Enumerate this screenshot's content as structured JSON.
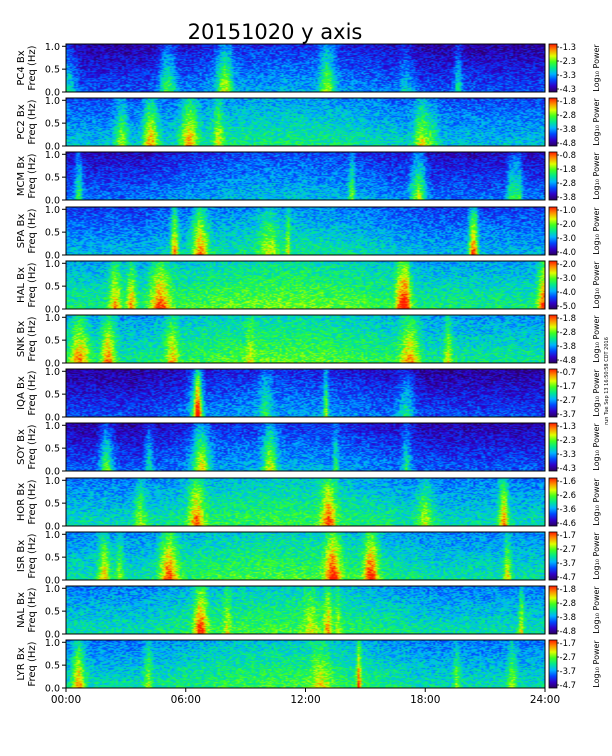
{
  "figure": {
    "title": "20151020 y axis",
    "stamp": "run Tue Sep 13 16:50:58 CDT 2016",
    "colorbar_label": "Log₁₀ Power"
  },
  "chart_data": {
    "type": "heatmap",
    "x_ticks": [
      "00:00",
      "06:00",
      "12:00",
      "18:00",
      "24:00"
    ],
    "xlim_hours": [
      0,
      24
    ],
    "y_ticks": [
      "0.0",
      "0.5",
      "1.0"
    ],
    "ylim_hz": [
      0,
      1.05
    ],
    "colormap": [
      "#2a0060",
      "#3000c8",
      "#0048ff",
      "#00b4ff",
      "#00e890",
      "#40ff20",
      "#e0ff00",
      "#ff9000",
      "#ff1800"
    ],
    "panels": [
      {
        "station": "PC4",
        "ylabel": "PC4 Bx\nFreq (Hz)",
        "cbticks": [
          "-1.3",
          "-2.3",
          "-3.3",
          "-4.3"
        ],
        "base": 0.08
      },
      {
        "station": "PC2",
        "ylabel": "PC2 Bx\nFreq (Hz)",
        "cbticks": [
          "-1.8",
          "-2.8",
          "-3.8",
          "-4.8"
        ],
        "base": 0.24
      },
      {
        "station": "MCM",
        "ylabel": "MCM Bx\nFreq (Hz)",
        "cbticks": [
          "-0.8",
          "-1.8",
          "-2.8",
          "-3.8"
        ],
        "base": 0.12
      },
      {
        "station": "SPA",
        "ylabel": "SPA Bx\nFreq (Hz)",
        "cbticks": [
          "-1.0",
          "-2.0",
          "-3.0",
          "-4.0"
        ],
        "base": 0.22
      },
      {
        "station": "HAL",
        "ylabel": "HAL Bx\nFreq (Hz)",
        "cbticks": [
          "-2.0",
          "-3.0",
          "-4.0",
          "-5.0"
        ],
        "base": 0.36
      },
      {
        "station": "SNK",
        "ylabel": "SNK Bx\nFreq (Hz)",
        "cbticks": [
          "-1.8",
          "-2.8",
          "-3.8",
          "-4.8"
        ],
        "base": 0.34
      },
      {
        "station": "IQA",
        "ylabel": "IQA Bx\nFreq (Hz)",
        "cbticks": [
          "-0.7",
          "-1.7",
          "-2.7",
          "-3.7"
        ],
        "base": 0.07
      },
      {
        "station": "SOY",
        "ylabel": "SOY Bx\nFreq (Hz)",
        "cbticks": [
          "-1.3",
          "-2.3",
          "-3.3",
          "-4.3"
        ],
        "base": 0.09
      },
      {
        "station": "HOR",
        "ylabel": "HOR Bx\nFreq (Hz)",
        "cbticks": [
          "-1.6",
          "-2.6",
          "-3.6",
          "-4.6"
        ],
        "base": 0.3
      },
      {
        "station": "ISR",
        "ylabel": "ISR Bx\nFreq (Hz)",
        "cbticks": [
          "-1.7",
          "-2.7",
          "-3.7",
          "-4.7"
        ],
        "base": 0.32
      },
      {
        "station": "NAL",
        "ylabel": "NAL Bx\nFreq (Hz)",
        "cbticks": [
          "-1.8",
          "-2.8",
          "-3.8",
          "-4.8"
        ],
        "base": 0.31
      },
      {
        "station": "LYR",
        "ylabel": "LYR Bx\nFreq (Hz)",
        "cbticks": [
          "-1.7",
          "-2.7",
          "-3.7",
          "-4.7"
        ],
        "base": 0.3
      }
    ]
  }
}
